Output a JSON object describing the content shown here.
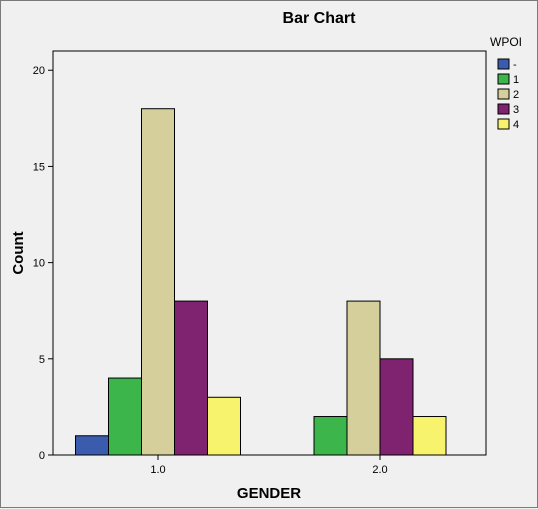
{
  "chart_data": {
    "type": "bar",
    "title": "Bar Chart",
    "xlabel": "GENDER",
    "ylabel": "Count",
    "categories": [
      "1.0",
      "2.0"
    ],
    "legend_title": "WPOI",
    "legend_position": "top-right",
    "ylim": [
      0,
      21
    ],
    "yticks": [
      0,
      5,
      10,
      15,
      20
    ],
    "grid": false,
    "series": [
      {
        "name": "-",
        "color": "#3b5bad",
        "values": [
          1,
          0
        ]
      },
      {
        "name": "1",
        "color": "#3cb54a",
        "values": [
          4,
          2
        ]
      },
      {
        "name": "2",
        "color": "#d5cf9b",
        "values": [
          18,
          8
        ]
      },
      {
        "name": "3",
        "color": "#7f2270",
        "values": [
          8,
          5
        ]
      },
      {
        "name": "4",
        "color": "#f7f36c",
        "values": [
          3,
          2
        ]
      }
    ]
  }
}
